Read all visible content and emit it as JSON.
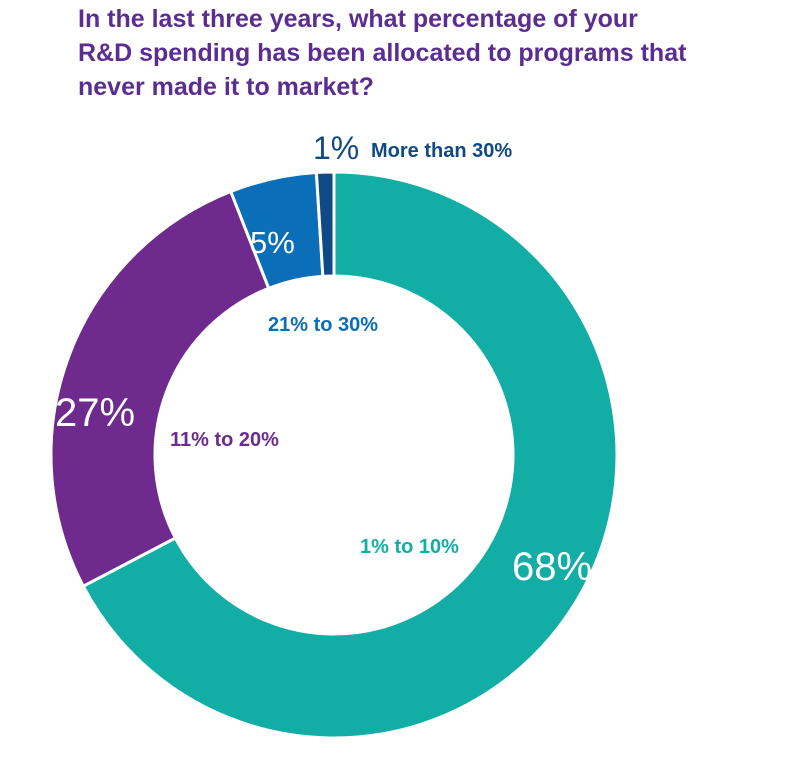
{
  "title_lines": [
    "In the last three years, what percentage of your",
    "R&D spending has been allocated to programs that",
    "never made it to market?"
  ],
  "colors": {
    "title": "#5c2d91",
    "teal": "#12ada4",
    "purple": "#6e2a8c",
    "blue": "#0a6fb8",
    "navy": "#0f4a87",
    "separator": "#ffffff"
  },
  "chart_data": {
    "type": "pie",
    "donut": true,
    "title": "In the last three years, what percentage of your R&D spending has been allocated to programs that never made it to market?",
    "start": "12 o'clock, clockwise",
    "slices": [
      {
        "category": "1% to 10%",
        "value": 68,
        "label": "68%",
        "color": "#12ada4"
      },
      {
        "category": "11% to 20%",
        "value": 27,
        "label": "27%",
        "color": "#6e2a8c"
      },
      {
        "category": "21% to 30%",
        "value": 5,
        "label": "5%",
        "color": "#0a6fb8"
      },
      {
        "category": "More than 30%",
        "value": 1,
        "label": "1%",
        "color": "#0f4a87"
      }
    ]
  }
}
